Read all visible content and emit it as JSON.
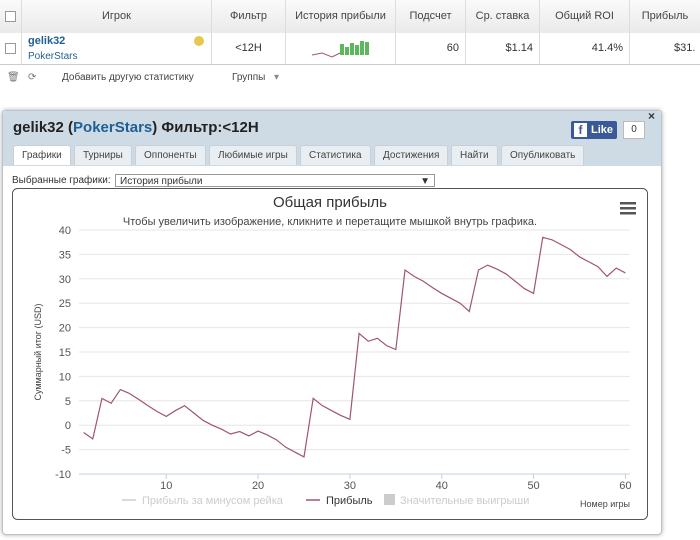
{
  "table": {
    "headers": [
      "Игрок",
      "Фильтр",
      "История прибыли",
      "Подсчет",
      "Ср. ставка",
      "Общий ROI",
      "Прибыль"
    ],
    "row": {
      "player": "gelik32",
      "site": "PokerStars",
      "filter": "<12H",
      "count": 60,
      "avg_stake": "$1.14",
      "roi": "41.4%",
      "profit": "$31."
    }
  },
  "toolbar": {
    "add": "Добавить другую статистику",
    "groups": "Группы"
  },
  "panel": {
    "title_parts": [
      "gelik32 (",
      "PokerStars",
      ") Фильтр:<12H"
    ],
    "like": "Like",
    "like_count": 0,
    "tabs": [
      "Графики",
      "Турниры",
      "Оппоненты",
      "Любимые игры",
      "Статистика",
      "Достижения",
      "Найти",
      "Опубликовать"
    ],
    "select_label": "Выбранные графики:",
    "select_value": "История прибыли"
  },
  "chart_data": {
    "type": "line",
    "title": "Общая прибыль",
    "subtitle": "Чтобы увеличить изображение, кликните и перетащите мышкой внутрь графика.",
    "y_label": "Суммарный итог (USD)",
    "x_label": "Номер игры",
    "x": [
      1,
      2,
      3,
      4,
      5,
      6,
      7,
      8,
      9,
      10,
      11,
      12,
      13,
      14,
      15,
      16,
      17,
      18,
      19,
      20,
      21,
      22,
      23,
      24,
      25,
      26,
      27,
      28,
      29,
      30,
      31,
      32,
      33,
      34,
      35,
      36,
      37,
      38,
      39,
      40,
      41,
      42,
      43,
      44,
      45,
      46,
      47,
      48,
      49,
      50,
      51,
      52,
      53,
      54,
      55,
      56,
      57,
      58,
      59,
      60
    ],
    "series": [
      {
        "name": "Прибыль за минусом рейка",
        "color": "#cccccc",
        "visible": false
      },
      {
        "name": "Прибыль",
        "color": "#a0566a",
        "visible": true,
        "values": [
          -1.5,
          -2.8,
          5.5,
          4.5,
          7.3,
          6.5,
          5.3,
          4,
          2.8,
          1.8,
          3,
          4,
          2.5,
          1,
          0,
          -0.8,
          -1.8,
          -1.3,
          -2.2,
          -1.2,
          -2,
          -3,
          -4.5,
          -5.5,
          -6.5,
          5.5,
          4,
          3,
          2,
          1.2,
          18.8,
          17.2,
          17.8,
          16.3,
          15.5,
          31.8,
          30.5,
          29.5,
          28.2,
          27,
          26,
          25,
          23.3,
          31.8,
          32.8,
          32,
          31,
          29.5,
          28,
          27,
          38.5,
          38,
          37,
          36,
          34.5,
          33.5,
          32.5,
          30.5,
          32.2,
          31.2
        ]
      },
      {
        "name": "Значительные выигрыши",
        "color": "#cccccc",
        "visible": false,
        "marker": "square"
      }
    ],
    "xlim": [
      0.5,
      60.5
    ],
    "xticks": [
      10,
      20,
      30,
      40,
      50,
      60
    ],
    "ylim": [
      -10,
      40
    ],
    "yticks": [
      -10,
      -5,
      0,
      5,
      10,
      15,
      20,
      25,
      30,
      35,
      40
    ],
    "grid": true
  }
}
